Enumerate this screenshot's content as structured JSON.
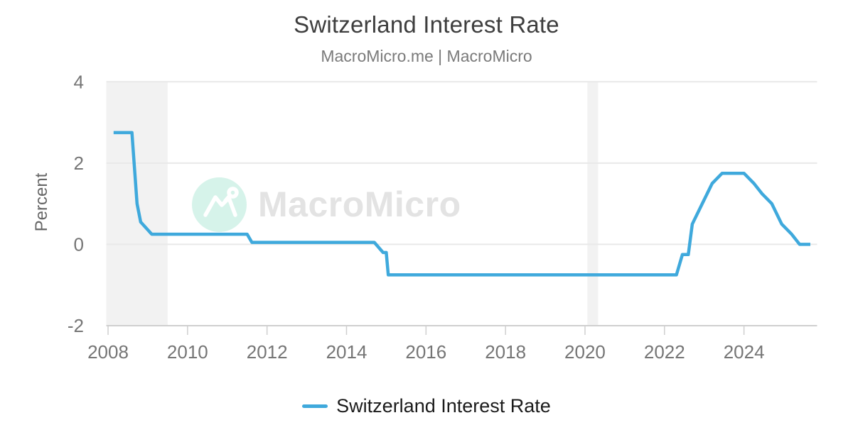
{
  "header": {
    "title": "Switzerland Interest Rate",
    "subtitle": "MacroMicro.me | MacroMicro"
  },
  "watermark": {
    "brand": "MacroMicro"
  },
  "legend": {
    "items": [
      {
        "label": "Switzerland Interest Rate",
        "color": "#3fa9dc",
        "marker": "line"
      }
    ]
  },
  "chart_data": {
    "type": "line",
    "title": "Switzerland Interest Rate",
    "source_label": "MacroMicro.me | MacroMicro",
    "xlabel": "",
    "ylabel": "Percent",
    "x_unit": "year",
    "xlim": [
      2007.955,
      2025.84
    ],
    "ylim": [
      -2,
      4
    ],
    "xticks": [
      2008,
      2010,
      2012,
      2014,
      2016,
      2018,
      2020,
      2022,
      2024
    ],
    "yticks": [
      4,
      2,
      0,
      -2
    ],
    "grid": "horizontal",
    "legend_position": "bottom",
    "series": [
      {
        "name": "Switzerland Interest Rate",
        "color": "#3fa9dc",
        "points": [
          [
            2008.14,
            2.75
          ],
          [
            2008.6,
            2.75
          ],
          [
            2008.73,
            1.0
          ],
          [
            2008.82,
            0.55
          ],
          [
            2009.1,
            0.25
          ],
          [
            2011.5,
            0.25
          ],
          [
            2011.62,
            0.05
          ],
          [
            2014.7,
            0.05
          ],
          [
            2014.92,
            -0.2
          ],
          [
            2015.0,
            -0.2
          ],
          [
            2015.05,
            -0.75
          ],
          [
            2022.3,
            -0.75
          ],
          [
            2022.45,
            -0.25
          ],
          [
            2022.6,
            -0.25
          ],
          [
            2022.7,
            0.5
          ],
          [
            2022.95,
            1.0
          ],
          [
            2023.2,
            1.5
          ],
          [
            2023.45,
            1.75
          ],
          [
            2024.0,
            1.75
          ],
          [
            2024.25,
            1.5
          ],
          [
            2024.45,
            1.25
          ],
          [
            2024.7,
            1.0
          ],
          [
            2024.95,
            0.5
          ],
          [
            2025.2,
            0.25
          ],
          [
            2025.4,
            0.0
          ],
          [
            2025.67,
            0.0
          ]
        ]
      }
    ],
    "shaded_regions": [
      {
        "from": 2007.955,
        "to": 2009.5,
        "meaning": "recession-band"
      },
      {
        "from": 2020.06,
        "to": 2020.33,
        "meaning": "recession-band"
      }
    ],
    "style": {
      "line_width": 4.5,
      "band_color": "#f2f2f2",
      "grid_color": "#e9e9e9",
      "axis_color": "#cfcfcf",
      "tick_label_color": "#757575",
      "axis_title_color": "#666666"
    }
  },
  "colors": {
    "accent_blue": "#3fa9dc",
    "watermark_circle": "#d6f3ea",
    "watermark_glyph": "#ffffff",
    "watermark_text": "#e3e3e3"
  }
}
